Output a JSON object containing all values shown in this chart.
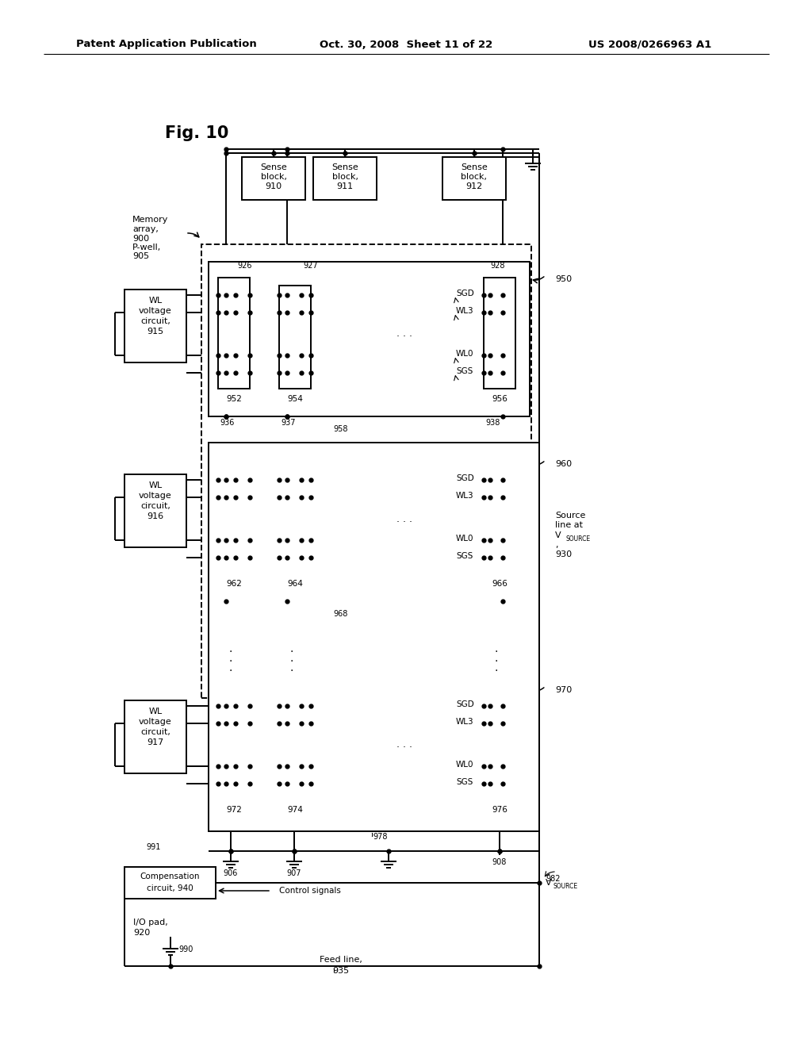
{
  "bg_color": "#ffffff",
  "header_left": "Patent Application Publication",
  "header_mid": "Oct. 30, 2008  Sheet 11 of 22",
  "header_right": "US 2008/0266963 A1"
}
